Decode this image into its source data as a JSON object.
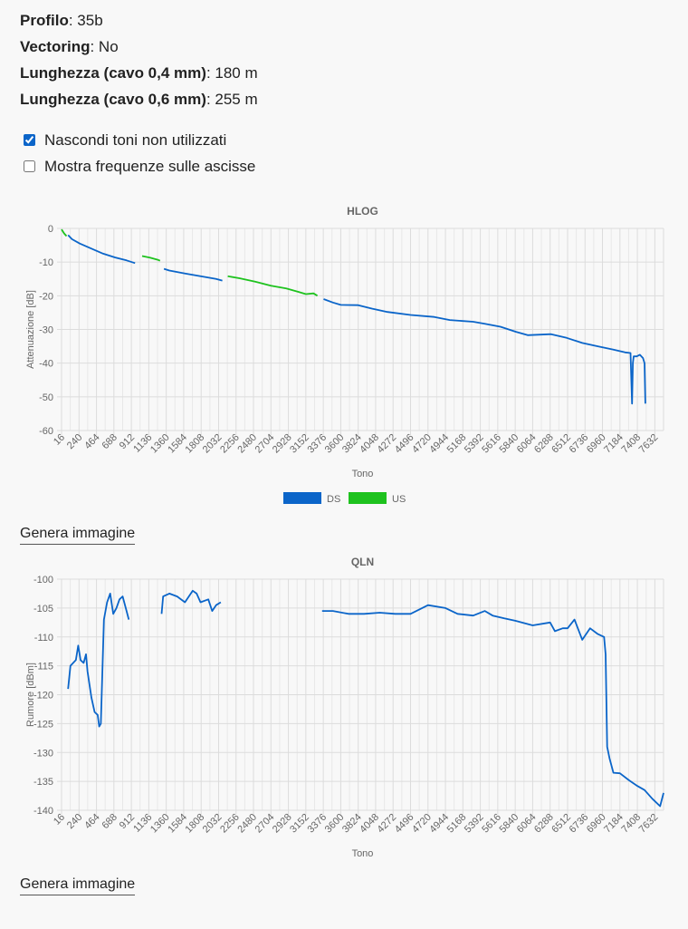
{
  "info": [
    {
      "label": "Profilo",
      "value": "35b"
    },
    {
      "label": "Vectoring",
      "value": "No"
    },
    {
      "label": "Lunghezza (cavo 0,4 mm)",
      "value": "180 m"
    },
    {
      "label": "Lunghezza (cavo 0,6 mm)",
      "value": "255 m"
    }
  ],
  "options": {
    "hide_unused": {
      "label": "Nascondi toni non utilizzati",
      "checked": true
    },
    "show_freq": {
      "label": "Mostra frequenze sulle ascisse",
      "checked": false
    }
  },
  "generate_label": "Genera immagine",
  "chart_data": [
    {
      "type": "line",
      "title": "HLOG",
      "xlabel": "Tono",
      "ylabel": "Attenuazione [dB]",
      "xlim": [
        16,
        7744
      ],
      "ylim": [
        -60,
        0
      ],
      "yticks": [
        0,
        -10,
        -20,
        -30,
        -40,
        -50,
        -60
      ],
      "xticks": [
        "16",
        "240",
        "464",
        "688",
        "912",
        "1136",
        "1360",
        "1584",
        "1808",
        "2032",
        "2256",
        "2480",
        "2704",
        "2928",
        "3152",
        "3376",
        "3600",
        "3824",
        "4048",
        "4272",
        "4496",
        "4720",
        "4944",
        "5168",
        "5392",
        "5616",
        "5840",
        "6064",
        "6288",
        "6512",
        "6736",
        "6960",
        "7184",
        "7408",
        "7632"
      ],
      "grid": true,
      "legend": "bottom",
      "series": [
        {
          "name": "DS",
          "color": "#0b65c9",
          "segments": [
            [
              [
                100,
                -2
              ],
              [
                150,
                -3.2
              ],
              [
                250,
                -4.5
              ],
              [
                400,
                -6
              ],
              [
                550,
                -7.5
              ],
              [
                700,
                -8.6
              ],
              [
                850,
                -9.5
              ],
              [
                960,
                -10.3
              ]
            ],
            [
              [
                1330,
                -12
              ],
              [
                1400,
                -12.5
              ],
              [
                1600,
                -13.4
              ],
              [
                1800,
                -14.2
              ],
              [
                2000,
                -15
              ],
              [
                2080,
                -15.5
              ]
            ],
            [
              [
                3380,
                -21
              ],
              [
                3500,
                -22
              ],
              [
                3600,
                -22.7
              ],
              [
                3824,
                -22.8
              ],
              [
                4000,
                -23.8
              ],
              [
                4200,
                -24.8
              ],
              [
                4496,
                -25.7
              ],
              [
                4800,
                -26.3
              ],
              [
                5000,
                -27.2
              ],
              [
                5300,
                -27.7
              ],
              [
                5450,
                -28.3
              ],
              [
                5650,
                -29.2
              ],
              [
                5850,
                -30.7
              ],
              [
                6000,
                -31.7
              ],
              [
                6300,
                -31.4
              ],
              [
                6500,
                -32.5
              ],
              [
                6700,
                -34
              ],
              [
                6900,
                -35
              ],
              [
                7100,
                -36
              ],
              [
                7250,
                -36.8
              ],
              [
                7320,
                -37
              ],
              [
                7340,
                -52
              ],
              [
                7350,
                -40
              ],
              [
                7360,
                -38
              ],
              [
                7400,
                -38
              ],
              [
                7440,
                -37.5
              ],
              [
                7480,
                -38.5
              ],
              [
                7500,
                -40
              ],
              [
                7510,
                -52
              ]
            ]
          ]
        },
        {
          "name": "US",
          "color": "#1ec21e",
          "segments": [
            [
              [
                16,
                -0.3
              ],
              [
                50,
                -1.5
              ],
              [
                80,
                -2.3
              ]
            ],
            [
              [
                1050,
                -8.2
              ],
              [
                1150,
                -8.7
              ],
              [
                1250,
                -9.3
              ],
              [
                1280,
                -9.6
              ]
            ],
            [
              [
                2150,
                -14.2
              ],
              [
                2300,
                -14.8
              ],
              [
                2500,
                -15.8
              ],
              [
                2704,
                -17
              ],
              [
                2900,
                -17.8
              ],
              [
                3050,
                -18.8
              ],
              [
                3152,
                -19.5
              ],
              [
                3250,
                -19.3
              ],
              [
                3300,
                -20
              ]
            ]
          ]
        }
      ]
    },
    {
      "type": "line",
      "title": "QLN",
      "xlabel": "Tono",
      "ylabel": "Rumore [dBm]",
      "xlim": [
        16,
        7744
      ],
      "ylim": [
        -140,
        -100
      ],
      "yticks": [
        -100,
        -105,
        -110,
        -115,
        -120,
        -125,
        -130,
        -135,
        -140
      ],
      "xticks": [
        "16",
        "240",
        "464",
        "688",
        "912",
        "1136",
        "1360",
        "1584",
        "1808",
        "2032",
        "2256",
        "2480",
        "2704",
        "2928",
        "3152",
        "3376",
        "3600",
        "3824",
        "4048",
        "4272",
        "4496",
        "4720",
        "4944",
        "5168",
        "5392",
        "5616",
        "5840",
        "6064",
        "6288",
        "6512",
        "6736",
        "6960",
        "7184",
        "7408",
        "7632"
      ],
      "grid": true,
      "series": [
        {
          "name": "",
          "color": "#0b65c9",
          "segments": [
            [
              [
                100,
                -119
              ],
              [
                130,
                -115
              ],
              [
                200,
                -114
              ],
              [
                230,
                -111.5
              ],
              [
                260,
                -114
              ],
              [
                300,
                -114.5
              ],
              [
                330,
                -113
              ],
              [
                350,
                -116
              ],
              [
                400,
                -120.5
              ],
              [
                440,
                -123
              ],
              [
                480,
                -123.5
              ],
              [
                500,
                -125.5
              ],
              [
                520,
                -125
              ],
              [
                560,
                -107
              ],
              [
                600,
                -104
              ],
              [
                640,
                -102.5
              ],
              [
                680,
                -106
              ],
              [
                720,
                -105
              ],
              [
                760,
                -103.5
              ],
              [
                800,
                -103
              ],
              [
                850,
                -105.5
              ],
              [
                880,
                -107
              ]
            ],
            [
              [
                1300,
                -106
              ],
              [
                1320,
                -103
              ],
              [
                1400,
                -102.5
              ],
              [
                1500,
                -103
              ],
              [
                1600,
                -104
              ],
              [
                1700,
                -102
              ],
              [
                1750,
                -102.5
              ],
              [
                1800,
                -104
              ],
              [
                1900,
                -103.5
              ],
              [
                1950,
                -105.5
              ],
              [
                2000,
                -104.5
              ],
              [
                2060,
                -104
              ]
            ],
            [
              [
                3360,
                -105.5
              ],
              [
                3500,
                -105.5
              ],
              [
                3700,
                -106
              ],
              [
                3900,
                -106
              ],
              [
                4100,
                -105.8
              ],
              [
                4300,
                -106
              ],
              [
                4496,
                -106
              ],
              [
                4720,
                -104.5
              ],
              [
                4944,
                -105
              ],
              [
                5100,
                -106
              ],
              [
                5300,
                -106.3
              ],
              [
                5450,
                -105.5
              ],
              [
                5550,
                -106.3
              ],
              [
                5700,
                -106.8
              ],
              [
                5840,
                -107.2
              ],
              [
                6064,
                -108
              ],
              [
                6288,
                -107.5
              ],
              [
                6350,
                -109
              ],
              [
                6450,
                -108.5
              ],
              [
                6512,
                -108.5
              ],
              [
                6600,
                -107
              ],
              [
                6700,
                -110.5
              ],
              [
                6800,
                -108.5
              ],
              [
                6900,
                -109.5
              ],
              [
                6980,
                -110
              ],
              [
                7000,
                -113
              ],
              [
                7020,
                -129
              ],
              [
                7050,
                -131
              ],
              [
                7100,
                -133.5
              ],
              [
                7184,
                -133.6
              ],
              [
                7300,
                -134.8
              ],
              [
                7408,
                -135.8
              ],
              [
                7500,
                -136.5
              ],
              [
                7600,
                -138
              ],
              [
                7700,
                -139.3
              ],
              [
                7744,
                -137
              ]
            ]
          ]
        }
      ]
    }
  ]
}
